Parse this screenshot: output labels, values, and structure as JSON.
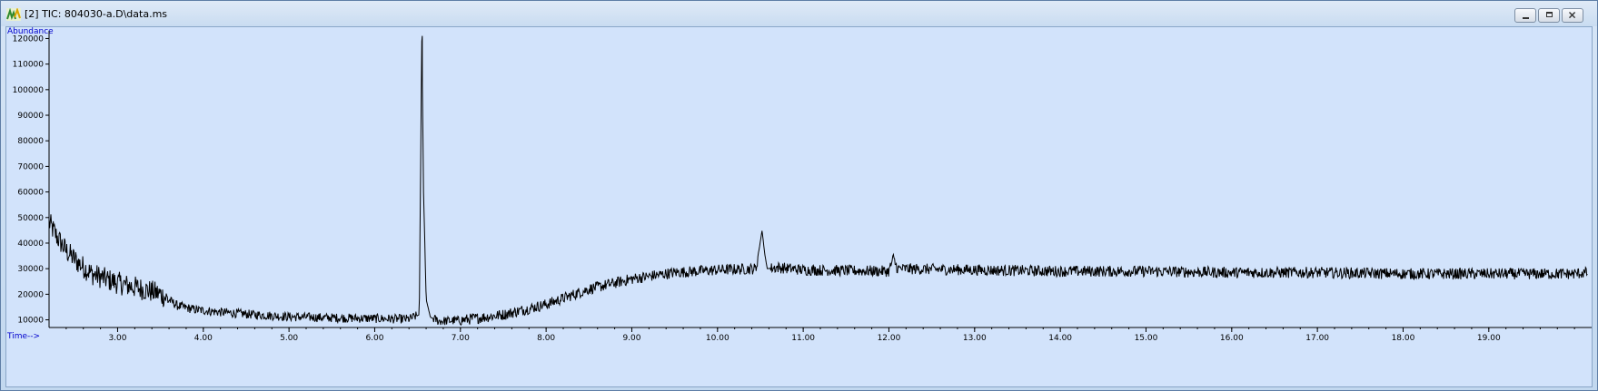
{
  "window": {
    "title": "[2] TIC: 804030-a.D\\data.ms",
    "icon": "chromatogram-icon",
    "buttons": {
      "minimize": "minimize-icon",
      "restore": "restore-icon",
      "close": "close-icon"
    }
  },
  "chart_data": {
    "type": "line",
    "title": "",
    "xlabel": "Time-->",
    "ylabel": "Abundance",
    "xlim": [
      2.2,
      20.2
    ],
    "ylim": [
      7000,
      123000
    ],
    "x_ticks": [
      "3.00",
      "4.00",
      "5.00",
      "6.00",
      "7.00",
      "8.00",
      "9.00",
      "10.00",
      "11.00",
      "12.00",
      "13.00",
      "14.00",
      "15.00",
      "16.00",
      "17.00",
      "18.00",
      "19.00"
    ],
    "y_ticks": [
      "10000",
      "20000",
      "30000",
      "40000",
      "50000",
      "60000",
      "70000",
      "80000",
      "90000",
      "100000",
      "110000",
      "120000"
    ],
    "grid": false,
    "legend": "none",
    "line_color": "#000000",
    "series": [
      {
        "x": [
          2.2,
          2.3,
          2.4,
          2.55,
          2.7,
          2.9,
          3.1,
          3.3,
          3.5,
          3.7,
          3.9,
          4.2,
          4.6,
          5.0,
          5.5,
          6.0,
          6.4,
          6.52,
          6.55,
          6.57,
          6.6,
          6.65,
          6.75,
          7.0,
          7.5,
          8.0,
          8.5,
          9.0,
          9.5,
          10.0,
          10.45,
          10.52,
          10.55,
          10.58,
          10.7,
          11.0,
          12.0,
          12.05,
          12.1,
          13.0,
          14.0,
          15.0,
          16.0,
          17.0,
          18.0,
          19.0,
          20.0,
          20.15
        ],
        "y": [
          48000,
          42000,
          37000,
          32000,
          28000,
          25500,
          23500,
          22000,
          20000,
          15500,
          14000,
          13000,
          12000,
          11200,
          10800,
          10500,
          10300,
          12000,
          121000,
          60000,
          18000,
          11000,
          9500,
          9800,
          12000,
          16000,
          22000,
          26000,
          28500,
          29500,
          30000,
          45000,
          36000,
          30000,
          30500,
          29500,
          29000,
          34000,
          30000,
          29500,
          29000,
          29000,
          28500,
          28500,
          28000,
          28000,
          28000,
          28500
        ]
      }
    ]
  }
}
